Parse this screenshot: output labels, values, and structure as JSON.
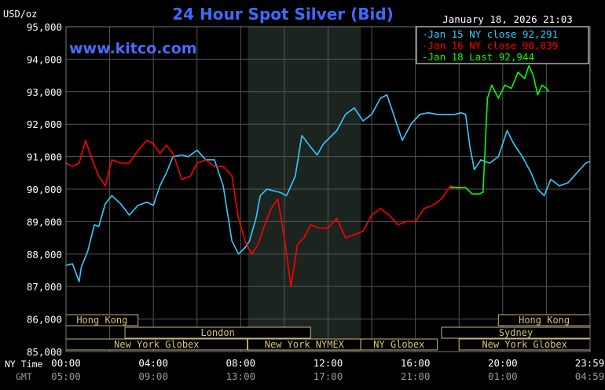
{
  "chart_data": {
    "type": "line",
    "title": "24 Hour Spot Silver (Bid)",
    "ylabel": "USD/oz",
    "ylim": [
      85000,
      95000
    ],
    "y_ticks": [
      "95,000",
      "94,000",
      "93,000",
      "92,000",
      "91,000",
      "90,000",
      "89,000",
      "88,000",
      "87,000",
      "86,000",
      "85,000"
    ],
    "y_tick_values": [
      95000,
      94000,
      93000,
      92000,
      91000,
      90000,
      89000,
      88000,
      87000,
      86000,
      85000
    ],
    "x_row_label": "NY Time",
    "x_ticks": [
      "00:00",
      "04:00",
      "08:00",
      "12:00",
      "16:00",
      "20:00",
      "23:59"
    ],
    "x_tick_hours": [
      0,
      4,
      8,
      12,
      16,
      20,
      23.983
    ],
    "gmt_row_label": "GMT",
    "gmt_ticks": [
      "05:00",
      "09:00",
      "13:00",
      "17:00",
      "21:00",
      "01:00",
      "04:59"
    ],
    "watermark": "www.kitco.com",
    "timestamp": "January 18, 2026 21:03",
    "grid": true,
    "legend_position": "top-right",
    "shaded_hours": [
      8.33,
      13.5
    ],
    "series": [
      {
        "name": "Jan 15 NY close 92,291",
        "color": "#33ccff",
        "x": [
          0,
          0.3,
          0.6,
          0.7,
          1.0,
          1.3,
          1.5,
          1.8,
          2.1,
          2.5,
          2.9,
          3.3,
          3.7,
          4.0,
          4.3,
          4.6,
          4.9,
          5.3,
          5.6,
          6.0,
          6.4,
          6.8,
          7.2,
          7.6,
          7.9,
          8.2,
          8.4,
          8.7,
          8.9,
          9.2,
          9.5,
          9.8,
          10.1,
          10.5,
          10.8,
          11.2,
          11.5,
          11.8,
          12.1,
          12.4,
          12.8,
          13.2,
          13.6,
          14.0,
          14.4,
          14.7,
          15.0,
          15.4,
          15.8,
          16.2,
          16.6,
          17.0,
          17.4,
          17.8,
          18.1,
          18.3,
          18.5,
          18.7,
          19.0,
          19.4,
          19.8,
          20.2,
          20.5,
          20.9,
          21.3,
          21.6,
          21.9,
          22.2,
          22.6,
          23.0,
          23.4,
          23.8,
          23.98
        ],
        "y": [
          87650,
          87700,
          87150,
          87600,
          88100,
          88900,
          88850,
          89550,
          89800,
          89550,
          89200,
          89500,
          89600,
          89500,
          90100,
          90500,
          91000,
          91050,
          91000,
          91200,
          90900,
          90900,
          90100,
          88400,
          88000,
          88200,
          88400,
          89100,
          89800,
          90000,
          89950,
          89900,
          89800,
          90400,
          91650,
          91300,
          91050,
          91400,
          91600,
          91800,
          92300,
          92500,
          92100,
          92300,
          92800,
          92900,
          92300,
          91500,
          92000,
          92300,
          92350,
          92300,
          92300,
          92300,
          92350,
          92300,
          91300,
          90600,
          90900,
          90800,
          91000,
          91800,
          91400,
          91000,
          90500,
          90000,
          89800,
          90300,
          90100,
          90200,
          90500,
          90800,
          90850
        ]
      },
      {
        "name": "Jan 16 NY close 90,039",
        "color": "#ff0000",
        "x": [
          0,
          0.3,
          0.6,
          0.9,
          1.2,
          1.5,
          1.8,
          2.1,
          2.5,
          2.9,
          3.3,
          3.7,
          4.0,
          4.3,
          4.6,
          4.9,
          5.3,
          5.7,
          6.0,
          6.4,
          6.8,
          7.2,
          7.6,
          7.9,
          8.2,
          8.5,
          8.8,
          9.1,
          9.4,
          9.7,
          10.0,
          10.3,
          10.6,
          10.9,
          11.2,
          11.6,
          12.0,
          12.4,
          12.8,
          13.2,
          13.6,
          14.0,
          14.4,
          14.8,
          15.2,
          15.6,
          16.0,
          16.4,
          16.8,
          17.2,
          17.6,
          18.1
        ],
        "y": [
          90800,
          90700,
          90800,
          91500,
          90900,
          90400,
          90100,
          90900,
          90800,
          90800,
          91200,
          91500,
          91400,
          91100,
          91350,
          91100,
          90300,
          90400,
          90800,
          90900,
          90700,
          90700,
          90400,
          89100,
          88400,
          88000,
          88300,
          88900,
          89400,
          89700,
          88500,
          87000,
          88300,
          88500,
          88900,
          88800,
          88800,
          89100,
          88500,
          88600,
          88700,
          89200,
          89400,
          89200,
          88900,
          89000,
          89000,
          89400,
          89500,
          89700,
          90100,
          90000
        ]
      },
      {
        "name": "Jan 18 Last 92,944",
        "color": "#00ff00",
        "x": [
          17.6,
          18.3,
          18.6,
          18.9,
          19.1,
          19.3,
          19.5,
          19.8,
          20.1,
          20.4,
          20.7,
          21.0,
          21.2,
          21.4,
          21.6,
          21.8,
          22.0,
          22.1
        ],
        "y": [
          90050,
          90050,
          89850,
          89850,
          89900,
          92800,
          93200,
          92800,
          93200,
          93100,
          93600,
          93400,
          93800,
          93500,
          92900,
          93200,
          93100,
          93000
        ]
      }
    ],
    "sessions": [
      {
        "label": "Hong Kong",
        "row": 0,
        "start": 0,
        "end": 3.3
      },
      {
        "label": "Hong Kong",
        "row": 0,
        "start": 19.8,
        "end": 24
      },
      {
        "label": "London",
        "row": 1,
        "start": 2.7,
        "end": 11.2
      },
      {
        "label": "Sydney",
        "row": 1,
        "start": 17.2,
        "end": 24
      },
      {
        "label": "New York Globex",
        "row": 2,
        "start": 0,
        "end": 8.3
      },
      {
        "label": "New York NYMEX",
        "row": 2,
        "start": 8.33,
        "end": 13.5
      },
      {
        "label": "NY Globex",
        "row": 2,
        "start": 13.5,
        "end": 17.0
      },
      {
        "label": "New York Globex",
        "row": 2,
        "start": 18.0,
        "end": 24
      }
    ]
  }
}
